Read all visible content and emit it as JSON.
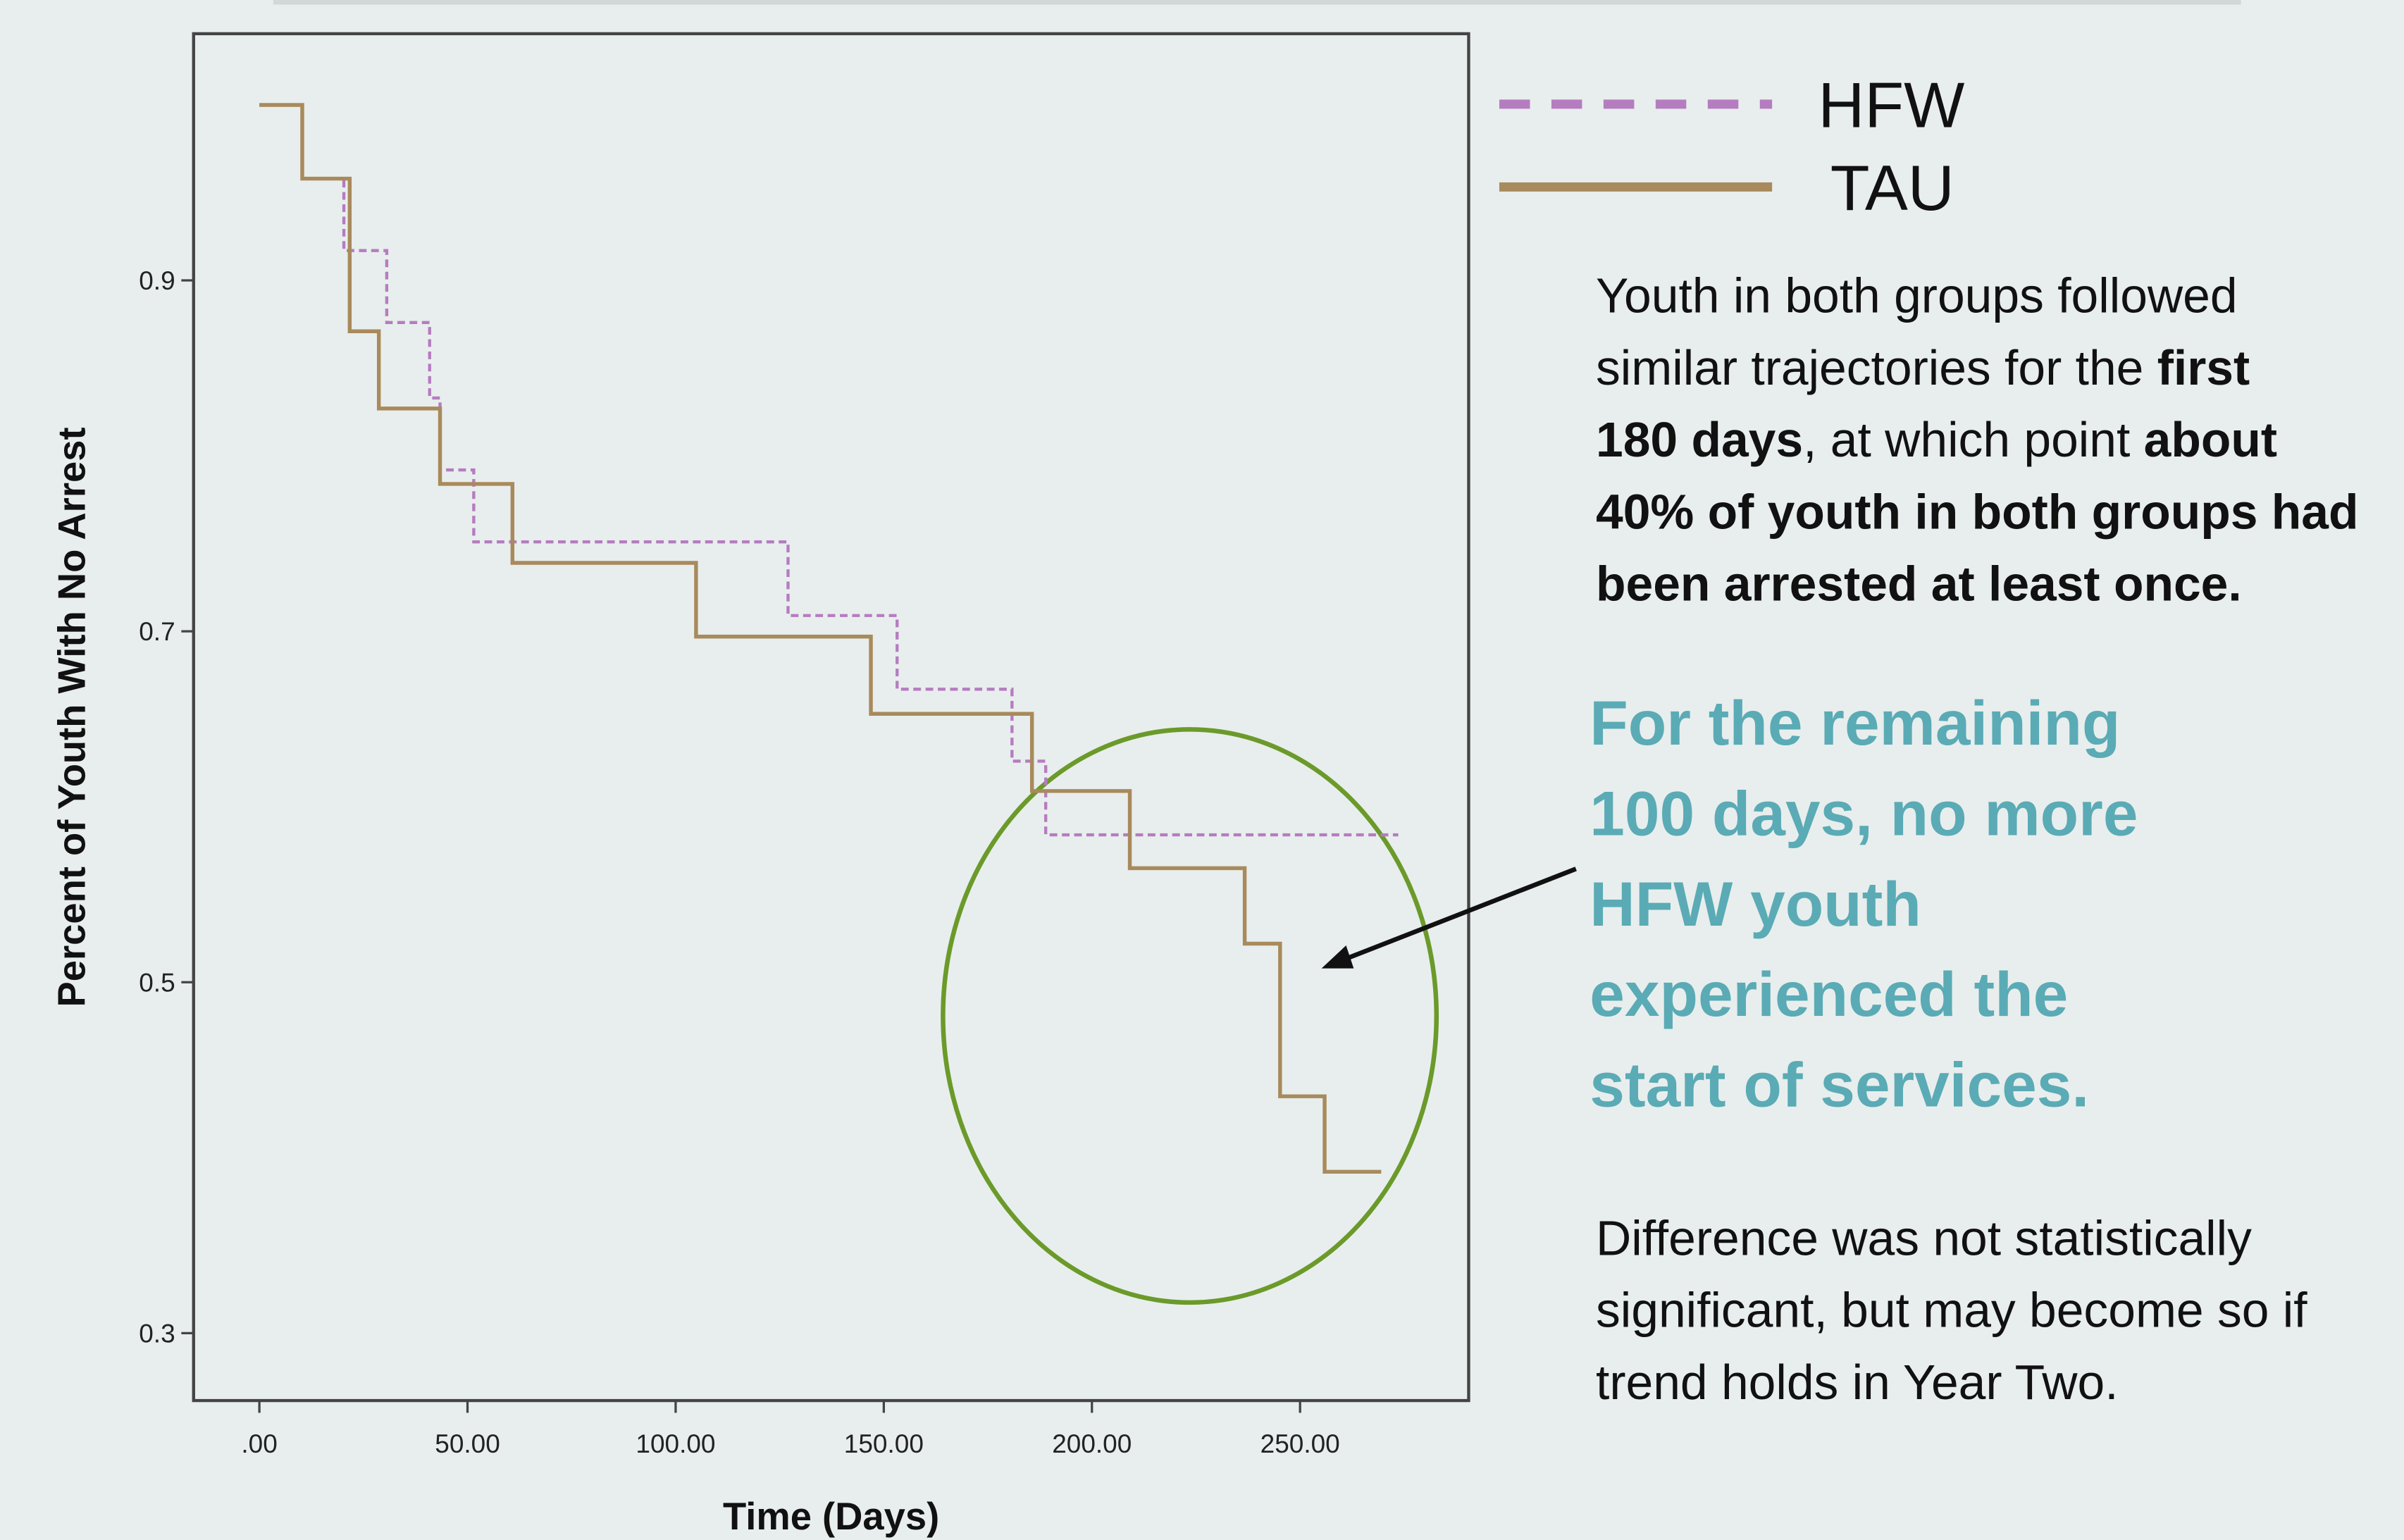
{
  "chart_data": {
    "type": "line",
    "step": true,
    "xlabel": "Time (Days)",
    "ylabel": "Percent of Youth With No Arrest",
    "xlim": [
      -15.8,
      290.5
    ],
    "ylim": [
      0.2616,
      1.0406
    ],
    "xticks": [
      {
        "value": 0,
        "label": ".00"
      },
      {
        "value": 50,
        "label": "50.00"
      },
      {
        "value": 100,
        "label": "100.00"
      },
      {
        "value": 150,
        "label": "150.00"
      },
      {
        "value": 200,
        "label": "200.00"
      },
      {
        "value": 250,
        "label": "250.00"
      }
    ],
    "yticks": [
      0.3,
      0.5,
      0.7,
      0.9
    ],
    "legend": "right",
    "series": [
      {
        "name": "HFW",
        "color": "#b57cc0",
        "dashed": true,
        "x": [
          0,
          10.3,
          20.3,
          30.6,
          40.9,
          43.4,
          51.5,
          127.0,
          153.2,
          180.8,
          188.9,
          273.6
        ],
        "values": [
          1.0,
          0.958,
          0.917,
          0.876,
          0.833,
          0.792,
          0.751,
          0.709,
          0.667,
          0.626,
          0.584,
          0.584
        ]
      },
      {
        "name": "TAU",
        "color": "#a88a5c",
        "dashed": false,
        "x": [
          0,
          10.3,
          21.7,
          28.7,
          43.4,
          60.8,
          104.9,
          146.9,
          185.6,
          209.1,
          236.7,
          245.2,
          255.9,
          269.5
        ],
        "values": [
          1.0,
          0.958,
          0.871,
          0.827,
          0.784,
          0.739,
          0.697,
          0.653,
          0.609,
          0.565,
          0.522,
          0.435,
          0.392,
          0.392
        ]
      }
    ],
    "annotations": [
      {
        "style": "note",
        "lines": [
          [
            {
              "text": "Youth in both groups followed"
            }
          ],
          [
            {
              "text": "similar trajectories for the "
            },
            {
              "text": "first",
              "bold": true
            }
          ],
          [
            {
              "text": "180 days",
              "bold": true
            },
            {
              "text": ", at which point "
            },
            {
              "text": "about",
              "bold": true
            }
          ],
          [
            {
              "text": "40% of youth in both groups had",
              "bold": true
            }
          ],
          [
            {
              "text": "been arrested at least once.",
              "bold": true
            }
          ]
        ]
      },
      {
        "style": "teal",
        "lines": [
          [
            {
              "text": "For the remaining"
            }
          ],
          [
            {
              "text": "100 days, no more"
            }
          ],
          [
            {
              "text": "HFW youth"
            }
          ],
          [
            {
              "text": "experienced the"
            }
          ],
          [
            {
              "text": "start of services."
            }
          ]
        ]
      },
      {
        "style": "note",
        "lines": [
          [
            {
              "text": "Difference was not statistically"
            }
          ],
          [
            {
              "text": "significant, but may become so if"
            }
          ],
          [
            {
              "text": "trend holds in Year Two."
            }
          ]
        ]
      }
    ]
  }
}
